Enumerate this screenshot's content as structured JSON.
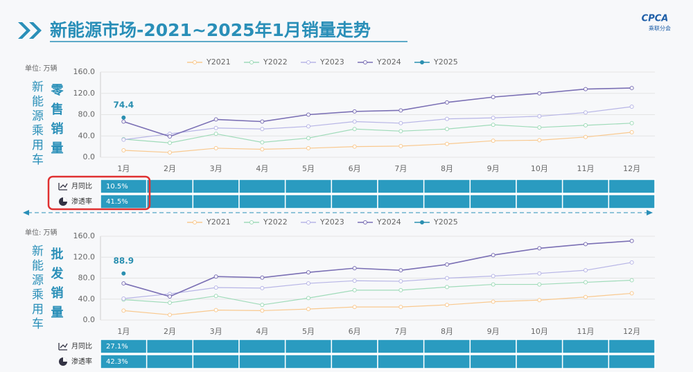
{
  "header": {
    "title": "新能源市场-2021~2025年1月销量走势",
    "logo": "CPCA",
    "logo_sub": "乘联分会"
  },
  "chart_data": [
    {
      "type": "line",
      "unit_label": "单位: 万辆",
      "side_label": "新能源乘用车",
      "y_label": "零售销量",
      "categories": [
        "1月",
        "2月",
        "3月",
        "4月",
        "5月",
        "6月",
        "7月",
        "8月",
        "9月",
        "10月",
        "11月",
        "12月"
      ],
      "ylim": [
        0,
        160
      ],
      "yticks": [
        {
          "value": 0,
          "label": "0.0"
        },
        {
          "value": 40,
          "label": "40.0"
        },
        {
          "value": 80,
          "label": "80.0"
        },
        {
          "value": 120,
          "label": "120.0"
        },
        {
          "value": 160,
          "label": "160.0"
        }
      ],
      "grid": true,
      "series": [
        {
          "name": "Y2021",
          "color": "#f9c98f",
          "values": [
            13,
            9,
            17,
            15,
            17,
            20,
            21,
            25,
            31,
            32,
            38,
            47
          ]
        },
        {
          "name": "Y2022",
          "color": "#9fdbb9",
          "values": [
            34,
            27,
            44,
            28,
            36,
            53,
            49,
            53,
            61,
            56,
            60,
            64
          ]
        },
        {
          "name": "Y2023",
          "color": "#b7b5e6",
          "values": [
            33,
            44,
            55,
            53,
            58,
            67,
            64,
            72,
            74,
            77,
            84,
            95
          ]
        },
        {
          "name": "Y2024",
          "color": "#7a6fb4",
          "values": [
            67,
            39,
            71,
            67,
            80,
            86,
            88,
            103,
            113,
            120,
            128,
            130
          ]
        },
        {
          "name": "Y2025",
          "color": "#2a8fb0",
          "values": [
            74.4,
            null,
            null,
            null,
            null,
            null,
            null,
            null,
            null,
            null,
            null,
            null
          ]
        }
      ],
      "table": [
        {
          "label": "月同比",
          "cells": [
            "10.5%"
          ]
        },
        {
          "label": "渗透率",
          "cells": [
            "41.5%"
          ]
        }
      ]
    },
    {
      "type": "line",
      "unit_label": "单位: 万辆",
      "side_label": "新能源乘用车",
      "y_label": "批发销量",
      "categories": [
        "1月",
        "2月",
        "3月",
        "4月",
        "5月",
        "6月",
        "7月",
        "8月",
        "9月",
        "10月",
        "11月",
        "12月"
      ],
      "ylim": [
        0,
        160
      ],
      "yticks": [
        {
          "value": 0,
          "label": "0.0"
        },
        {
          "value": 40,
          "label": "40.0"
        },
        {
          "value": 80,
          "label": "80.0"
        },
        {
          "value": 120,
          "label": "120.0"
        },
        {
          "value": 160,
          "label": "160.0"
        }
      ],
      "grid": true,
      "series": [
        {
          "name": "Y2021",
          "color": "#f9c98f",
          "values": [
            18,
            10,
            19,
            18,
            21,
            25,
            25,
            29,
            35,
            38,
            44,
            51
          ]
        },
        {
          "name": "Y2022",
          "color": "#9fdbb9",
          "values": [
            39,
            33,
            46,
            29,
            42,
            57,
            57,
            63,
            68,
            68,
            72,
            76
          ]
        },
        {
          "name": "Y2023",
          "color": "#b7b5e6",
          "values": [
            41,
            50,
            62,
            61,
            70,
            75,
            74,
            80,
            84,
            89,
            95,
            110
          ]
        },
        {
          "name": "Y2024",
          "color": "#7a6fb4",
          "values": [
            70,
            45,
            83,
            81,
            91,
            99,
            95,
            106,
            124,
            137,
            145,
            151
          ]
        },
        {
          "name": "Y2025",
          "color": "#2a8fb0",
          "values": [
            88.9,
            null,
            null,
            null,
            null,
            null,
            null,
            null,
            null,
            null,
            null,
            null
          ]
        }
      ],
      "table": [
        {
          "label": "月同比",
          "cells": [
            "27.1%"
          ]
        },
        {
          "label": "渗透率",
          "cells": [
            "42.3%"
          ]
        }
      ]
    }
  ]
}
